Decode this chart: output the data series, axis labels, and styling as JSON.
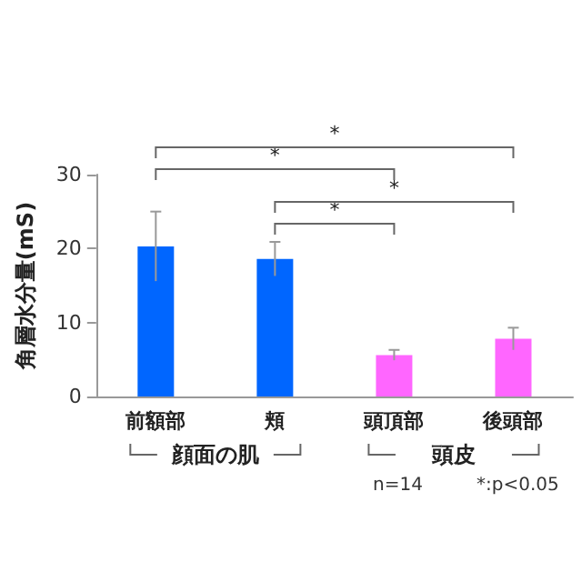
{
  "chart_data": {
    "type": "bar",
    "ylabel": "角層水分量(mS)",
    "categories": [
      "前額部",
      "頬",
      "頭頂部",
      "後頭部"
    ],
    "values": [
      20.3,
      18.6,
      5.6,
      7.8
    ],
    "colors": [
      "#0066ff",
      "#0066ff",
      "#ff66ff",
      "#ff66ff"
    ],
    "errors": [
      4.7,
      2.3,
      0.7,
      1.5
    ],
    "ylim": [
      0,
      30
    ],
    "yticks": [
      0,
      10,
      20,
      30
    ],
    "annotations": [
      "*",
      "*",
      "*",
      "*",
      "顔面の肌",
      "頭皮",
      "n=14",
      "*:p<0.05"
    ]
  }
}
